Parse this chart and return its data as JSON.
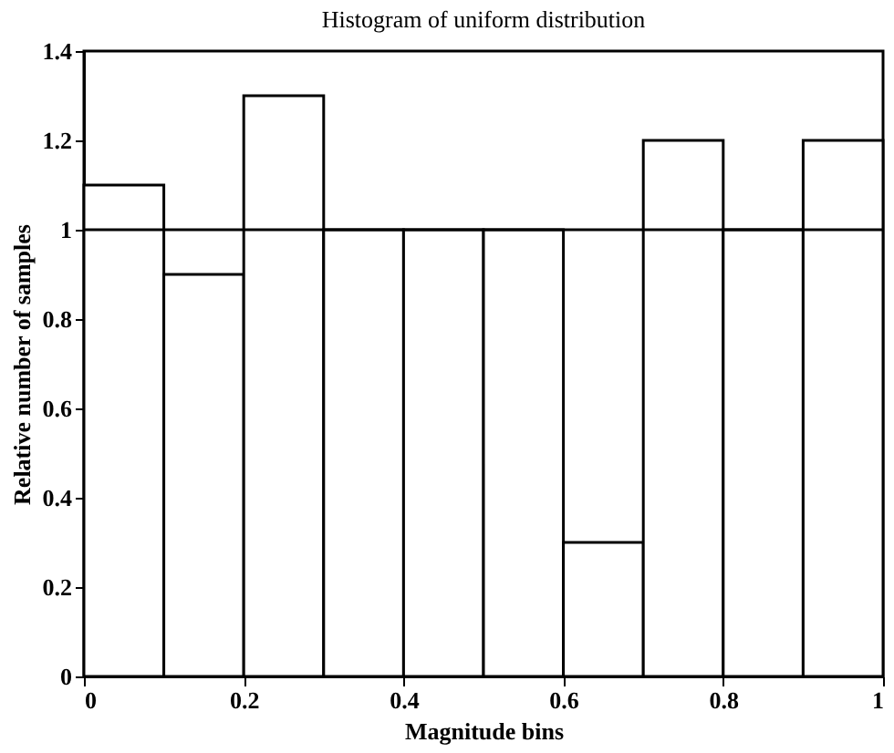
{
  "chart_data": {
    "type": "histogram",
    "title": "Histogram of uniform distribution",
    "xlabel": "Magnitude bins",
    "ylabel": "Relative number of samples",
    "bins": [
      0,
      0.1,
      0.2,
      0.3,
      0.4,
      0.5,
      0.6,
      0.7,
      0.8,
      0.9,
      1.0
    ],
    "values": [
      1.1,
      0.9,
      1.3,
      1.0,
      1.0,
      1.0,
      0.3,
      1.2,
      1.0,
      1.2
    ],
    "color": "#ffffff",
    "xlim": [
      0,
      1
    ],
    "xticks": [
      0,
      0.2,
      0.4,
      0.6,
      0.8,
      1
    ],
    "ylim": [
      0,
      1.4
    ],
    "yticks": [
      0,
      0.2,
      0.4,
      0.6,
      0.8,
      1,
      1.2,
      1.4
    ],
    "ref_lines": [
      {
        "axis": "y",
        "value": 1,
        "color": "#000000"
      }
    ],
    "grid": false
  }
}
